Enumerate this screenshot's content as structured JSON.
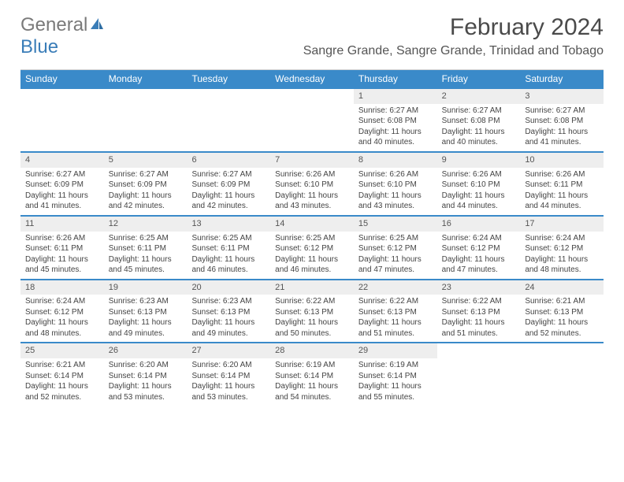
{
  "logo": {
    "word1": "General",
    "word2": "Blue"
  },
  "title": "February 2024",
  "location": "Sangre Grande, Sangre Grande, Trinidad and Tobago",
  "colors": {
    "header_bg": "#3a8ac9",
    "week_border": "#3a8ac9",
    "daynum_bg": "#eeeeee",
    "text": "#444444",
    "logo_gray": "#7a7a7a",
    "logo_blue": "#3a7db8"
  },
  "typography": {
    "title_fontsize": 30,
    "location_fontsize": 16,
    "header_fontsize": 12,
    "cell_fontsize": 10
  },
  "day_names": [
    "Sunday",
    "Monday",
    "Tuesday",
    "Wednesday",
    "Thursday",
    "Friday",
    "Saturday"
  ],
  "weeks": [
    [
      {
        "day": "",
        "sunrise": "",
        "sunset": "",
        "daylight": ""
      },
      {
        "day": "",
        "sunrise": "",
        "sunset": "",
        "daylight": ""
      },
      {
        "day": "",
        "sunrise": "",
        "sunset": "",
        "daylight": ""
      },
      {
        "day": "",
        "sunrise": "",
        "sunset": "",
        "daylight": ""
      },
      {
        "day": "1",
        "sunrise": "Sunrise: 6:27 AM",
        "sunset": "Sunset: 6:08 PM",
        "daylight": "Daylight: 11 hours and 40 minutes."
      },
      {
        "day": "2",
        "sunrise": "Sunrise: 6:27 AM",
        "sunset": "Sunset: 6:08 PM",
        "daylight": "Daylight: 11 hours and 40 minutes."
      },
      {
        "day": "3",
        "sunrise": "Sunrise: 6:27 AM",
        "sunset": "Sunset: 6:08 PM",
        "daylight": "Daylight: 11 hours and 41 minutes."
      }
    ],
    [
      {
        "day": "4",
        "sunrise": "Sunrise: 6:27 AM",
        "sunset": "Sunset: 6:09 PM",
        "daylight": "Daylight: 11 hours and 41 minutes."
      },
      {
        "day": "5",
        "sunrise": "Sunrise: 6:27 AM",
        "sunset": "Sunset: 6:09 PM",
        "daylight": "Daylight: 11 hours and 42 minutes."
      },
      {
        "day": "6",
        "sunrise": "Sunrise: 6:27 AM",
        "sunset": "Sunset: 6:09 PM",
        "daylight": "Daylight: 11 hours and 42 minutes."
      },
      {
        "day": "7",
        "sunrise": "Sunrise: 6:26 AM",
        "sunset": "Sunset: 6:10 PM",
        "daylight": "Daylight: 11 hours and 43 minutes."
      },
      {
        "day": "8",
        "sunrise": "Sunrise: 6:26 AM",
        "sunset": "Sunset: 6:10 PM",
        "daylight": "Daylight: 11 hours and 43 minutes."
      },
      {
        "day": "9",
        "sunrise": "Sunrise: 6:26 AM",
        "sunset": "Sunset: 6:10 PM",
        "daylight": "Daylight: 11 hours and 44 minutes."
      },
      {
        "day": "10",
        "sunrise": "Sunrise: 6:26 AM",
        "sunset": "Sunset: 6:11 PM",
        "daylight": "Daylight: 11 hours and 44 minutes."
      }
    ],
    [
      {
        "day": "11",
        "sunrise": "Sunrise: 6:26 AM",
        "sunset": "Sunset: 6:11 PM",
        "daylight": "Daylight: 11 hours and 45 minutes."
      },
      {
        "day": "12",
        "sunrise": "Sunrise: 6:25 AM",
        "sunset": "Sunset: 6:11 PM",
        "daylight": "Daylight: 11 hours and 45 minutes."
      },
      {
        "day": "13",
        "sunrise": "Sunrise: 6:25 AM",
        "sunset": "Sunset: 6:11 PM",
        "daylight": "Daylight: 11 hours and 46 minutes."
      },
      {
        "day": "14",
        "sunrise": "Sunrise: 6:25 AM",
        "sunset": "Sunset: 6:12 PM",
        "daylight": "Daylight: 11 hours and 46 minutes."
      },
      {
        "day": "15",
        "sunrise": "Sunrise: 6:25 AM",
        "sunset": "Sunset: 6:12 PM",
        "daylight": "Daylight: 11 hours and 47 minutes."
      },
      {
        "day": "16",
        "sunrise": "Sunrise: 6:24 AM",
        "sunset": "Sunset: 6:12 PM",
        "daylight": "Daylight: 11 hours and 47 minutes."
      },
      {
        "day": "17",
        "sunrise": "Sunrise: 6:24 AM",
        "sunset": "Sunset: 6:12 PM",
        "daylight": "Daylight: 11 hours and 48 minutes."
      }
    ],
    [
      {
        "day": "18",
        "sunrise": "Sunrise: 6:24 AM",
        "sunset": "Sunset: 6:12 PM",
        "daylight": "Daylight: 11 hours and 48 minutes."
      },
      {
        "day": "19",
        "sunrise": "Sunrise: 6:23 AM",
        "sunset": "Sunset: 6:13 PM",
        "daylight": "Daylight: 11 hours and 49 minutes."
      },
      {
        "day": "20",
        "sunrise": "Sunrise: 6:23 AM",
        "sunset": "Sunset: 6:13 PM",
        "daylight": "Daylight: 11 hours and 49 minutes."
      },
      {
        "day": "21",
        "sunrise": "Sunrise: 6:22 AM",
        "sunset": "Sunset: 6:13 PM",
        "daylight": "Daylight: 11 hours and 50 minutes."
      },
      {
        "day": "22",
        "sunrise": "Sunrise: 6:22 AM",
        "sunset": "Sunset: 6:13 PM",
        "daylight": "Daylight: 11 hours and 51 minutes."
      },
      {
        "day": "23",
        "sunrise": "Sunrise: 6:22 AM",
        "sunset": "Sunset: 6:13 PM",
        "daylight": "Daylight: 11 hours and 51 minutes."
      },
      {
        "day": "24",
        "sunrise": "Sunrise: 6:21 AM",
        "sunset": "Sunset: 6:13 PM",
        "daylight": "Daylight: 11 hours and 52 minutes."
      }
    ],
    [
      {
        "day": "25",
        "sunrise": "Sunrise: 6:21 AM",
        "sunset": "Sunset: 6:14 PM",
        "daylight": "Daylight: 11 hours and 52 minutes."
      },
      {
        "day": "26",
        "sunrise": "Sunrise: 6:20 AM",
        "sunset": "Sunset: 6:14 PM",
        "daylight": "Daylight: 11 hours and 53 minutes."
      },
      {
        "day": "27",
        "sunrise": "Sunrise: 6:20 AM",
        "sunset": "Sunset: 6:14 PM",
        "daylight": "Daylight: 11 hours and 53 minutes."
      },
      {
        "day": "28",
        "sunrise": "Sunrise: 6:19 AM",
        "sunset": "Sunset: 6:14 PM",
        "daylight": "Daylight: 11 hours and 54 minutes."
      },
      {
        "day": "29",
        "sunrise": "Sunrise: 6:19 AM",
        "sunset": "Sunset: 6:14 PM",
        "daylight": "Daylight: 11 hours and 55 minutes."
      },
      {
        "day": "",
        "sunrise": "",
        "sunset": "",
        "daylight": ""
      },
      {
        "day": "",
        "sunrise": "",
        "sunset": "",
        "daylight": ""
      }
    ]
  ]
}
